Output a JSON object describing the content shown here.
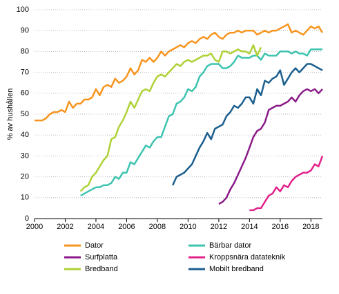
{
  "chart_data": {
    "type": "line",
    "ylabel": "% av hushållen",
    "x": [
      2000,
      2000.25,
      2000.5,
      2000.75,
      2001,
      2001.25,
      2001.5,
      2001.75,
      2002,
      2002.25,
      2002.5,
      2002.75,
      2003,
      2003.25,
      2003.5,
      2003.75,
      2004,
      2004.25,
      2004.5,
      2004.75,
      2005,
      2005.25,
      2005.5,
      2005.75,
      2006,
      2006.25,
      2006.5,
      2006.75,
      2007,
      2007.25,
      2007.5,
      2007.75,
      2008,
      2008.25,
      2008.5,
      2008.75,
      2009,
      2009.25,
      2009.5,
      2009.75,
      2010,
      2010.25,
      2010.5,
      2010.75,
      2011,
      2011.25,
      2011.5,
      2011.75,
      2012,
      2012.25,
      2012.5,
      2012.75,
      2013,
      2013.25,
      2013.5,
      2013.75,
      2014,
      2014.25,
      2014.5,
      2014.75,
      2015,
      2015.25,
      2015.5,
      2015.75,
      2016,
      2016.25,
      2016.5,
      2016.75,
      2017,
      2017.25,
      2017.5,
      2017.75,
      2018,
      2018.25,
      2018.5,
      2018.75
    ],
    "xlim": [
      2000,
      2018.75
    ],
    "xticks": [
      2000,
      2002,
      2004,
      2006,
      2008,
      2010,
      2012,
      2014,
      2016,
      2018
    ],
    "ylim": [
      0,
      100
    ],
    "yticks": [
      0,
      10,
      20,
      30,
      40,
      50,
      60,
      70,
      80,
      90,
      100
    ],
    "grid": true,
    "series": [
      {
        "name": "Dator",
        "color": "#f7941d",
        "values": [
          47,
          47,
          47,
          48,
          50,
          51,
          51,
          52,
          51,
          56,
          53,
          55,
          55,
          57,
          57,
          58,
          62,
          59,
          63,
          64,
          63,
          67,
          65,
          66,
          68,
          72,
          69,
          71,
          76,
          75,
          77,
          75,
          77,
          80,
          78,
          80,
          81,
          82,
          83,
          82,
          84,
          85,
          84,
          86,
          87,
          86,
          88,
          89,
          87,
          86,
          88,
          89,
          89,
          90,
          89,
          90,
          90,
          90,
          88,
          89,
          90,
          89,
          90,
          90,
          91,
          92,
          93,
          89,
          90,
          89,
          88,
          90,
          92,
          91,
          92,
          89
        ]
      },
      {
        "name": "Bärbar dator",
        "color": "#3cc3b0",
        "values": [
          null,
          null,
          null,
          null,
          null,
          null,
          null,
          null,
          null,
          null,
          null,
          null,
          11,
          12,
          13,
          14,
          15,
          15,
          16,
          16,
          17,
          20,
          19,
          22,
          22,
          27,
          26,
          29,
          32,
          35,
          34,
          37,
          39,
          39,
          44,
          49,
          50,
          55,
          56,
          58,
          62,
          61,
          63,
          68,
          70,
          73,
          74,
          74,
          74,
          72,
          72,
          73,
          75,
          78,
          77,
          77,
          77,
          78,
          78,
          76,
          79,
          78,
          78,
          78,
          80,
          80,
          80,
          79,
          80,
          79,
          79,
          78,
          81,
          81,
          81,
          81
        ]
      },
      {
        "name": "Surfplatta",
        "color": "#8b1a89",
        "values": [
          null,
          null,
          null,
          null,
          null,
          null,
          null,
          null,
          null,
          null,
          null,
          null,
          null,
          null,
          null,
          null,
          null,
          null,
          null,
          null,
          null,
          null,
          null,
          null,
          null,
          null,
          null,
          null,
          null,
          null,
          null,
          null,
          null,
          null,
          null,
          null,
          null,
          null,
          null,
          null,
          null,
          null,
          null,
          null,
          null,
          null,
          null,
          null,
          7,
          8,
          10,
          14,
          17,
          21,
          25,
          29,
          34,
          39,
          42,
          43,
          46,
          52,
          53,
          54,
          54,
          55,
          56,
          58,
          56,
          59,
          61,
          62,
          61,
          62,
          60,
          62
        ]
      },
      {
        "name": "Kroppsnära datateknik",
        "color": "#e2218b",
        "values": [
          null,
          null,
          null,
          null,
          null,
          null,
          null,
          null,
          null,
          null,
          null,
          null,
          null,
          null,
          null,
          null,
          null,
          null,
          null,
          null,
          null,
          null,
          null,
          null,
          null,
          null,
          null,
          null,
          null,
          null,
          null,
          null,
          null,
          null,
          null,
          null,
          null,
          null,
          null,
          null,
          null,
          null,
          null,
          null,
          null,
          null,
          null,
          null,
          null,
          null,
          null,
          null,
          null,
          null,
          null,
          null,
          4,
          4,
          5,
          5,
          8,
          11,
          12,
          15,
          13,
          16,
          15,
          18,
          20,
          21,
          22,
          22,
          23,
          26,
          25,
          30
        ]
      },
      {
        "name": "Bredband",
        "color": "#aed136",
        "values": [
          null,
          null,
          null,
          null,
          null,
          null,
          null,
          null,
          null,
          null,
          null,
          null,
          13,
          15,
          16,
          20,
          22,
          25,
          28,
          30,
          38,
          39,
          44,
          47,
          51,
          56,
          53,
          57,
          61,
          62,
          61,
          65,
          68,
          69,
          68,
          70,
          72,
          74,
          73,
          75,
          76,
          75,
          76,
          77,
          78,
          78,
          79,
          76,
          75,
          80,
          80,
          79,
          80,
          81,
          80,
          80,
          79,
          83,
          78,
          82,
          null,
          null,
          null,
          null,
          null,
          null,
          null,
          null,
          null,
          null,
          null,
          null,
          null,
          null,
          null,
          null
        ]
      },
      {
        "name": "Mobilt bredband",
        "color": "#1b5e8f",
        "values": [
          null,
          null,
          null,
          null,
          null,
          null,
          null,
          null,
          null,
          null,
          null,
          null,
          null,
          null,
          null,
          null,
          null,
          null,
          null,
          null,
          null,
          null,
          null,
          null,
          null,
          null,
          null,
          null,
          null,
          null,
          null,
          null,
          null,
          null,
          null,
          null,
          16,
          20,
          21,
          22,
          24,
          26,
          30,
          34,
          37,
          41,
          38,
          43,
          44,
          45,
          49,
          51,
          54,
          53,
          55,
          58,
          58,
          55,
          62,
          59,
          66,
          65,
          67,
          68,
          71,
          64,
          67,
          70,
          72,
          70,
          72,
          74,
          74,
          73,
          72,
          71
        ]
      }
    ]
  }
}
